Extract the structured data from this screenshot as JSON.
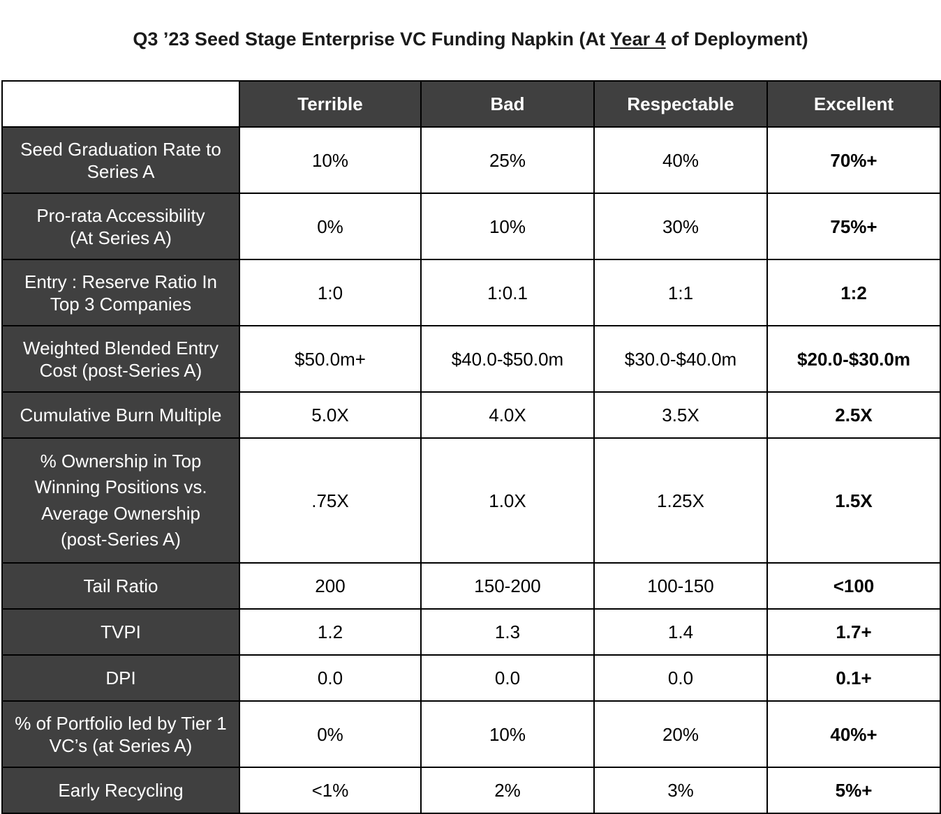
{
  "title": {
    "prefix": "Q3 ’23 Seed Stage Enterprise VC Funding Napkin (At ",
    "underlined": "Year 4",
    "suffix": " of Deployment)"
  },
  "table": {
    "columns": [
      "Terrible",
      "Bad",
      "Respectable",
      "Excellent"
    ],
    "rows": [
      {
        "label": [
          "Seed Graduation Rate to",
          "Series A"
        ],
        "values": [
          "10%",
          "25%",
          "40%",
          "70%+"
        ]
      },
      {
        "label": [
          "Pro-rata Accessibility",
          "(At Series A)"
        ],
        "values": [
          "0%",
          "10%",
          "30%",
          "75%+"
        ]
      },
      {
        "label": [
          "Entry : Reserve Ratio In",
          "Top 3 Companies"
        ],
        "values": [
          "1:0",
          "1:0.1",
          "1:1",
          "1:2"
        ]
      },
      {
        "label": [
          "Weighted Blended Entry",
          "Cost (post-Series A)"
        ],
        "values": [
          "$50.0m+",
          "$40.0-$50.0m",
          "$30.0-$40.0m",
          "$20.0-$30.0m"
        ]
      },
      {
        "label": [
          "Cumulative Burn Multiple"
        ],
        "values": [
          "5.0X",
          "4.0X",
          "3.5X",
          "2.5X"
        ]
      },
      {
        "label": [
          "% Ownership in Top",
          "Winning Positions vs.",
          "Average Ownership",
          "(post-Series A)"
        ],
        "values": [
          ".75X",
          "1.0X",
          "1.25X",
          "1.5X"
        ]
      },
      {
        "label": [
          "Tail Ratio"
        ],
        "values": [
          "200",
          "150-200",
          "100-150",
          "<100"
        ]
      },
      {
        "label": [
          "TVPI"
        ],
        "values": [
          "1.2",
          "1.3",
          "1.4",
          "1.7+"
        ]
      },
      {
        "label": [
          "DPI"
        ],
        "values": [
          "0.0",
          "0.0",
          "0.0",
          "0.1+"
        ]
      },
      {
        "label": [
          "% of Portfolio led by Tier 1",
          "VC’s (at Series A)"
        ],
        "values": [
          "0%",
          "10%",
          "20%",
          "40%+"
        ]
      },
      {
        "label": [
          "Early Recycling"
        ],
        "values": [
          "<1%",
          "2%",
          "3%",
          "5%+"
        ]
      }
    ]
  }
}
